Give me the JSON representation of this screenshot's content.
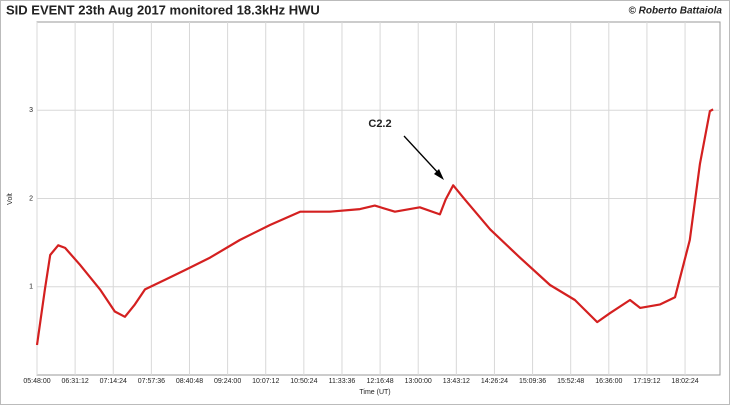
{
  "chart_data": {
    "type": "line",
    "title": "SID EVENT 23th Aug 2017  monitored 18.3kHz HWU",
    "subtitle": "© Roberto Battaiola",
    "xlabel": "Time (UT)",
    "ylabel": "Volt",
    "annotation": "C2.2",
    "x": [
      5.8,
      5.95,
      6.05,
      6.2,
      6.33,
      6.61,
      6.99,
      7.27,
      7.46,
      7.65,
      7.84,
      8.22,
      8.6,
      9.07,
      9.63,
      10.2,
      10.77,
      11.33,
      11.9,
      12.18,
      12.56,
      13.03,
      13.41,
      13.52,
      13.66,
      13.88,
      14.36,
      14.92,
      15.49,
      15.96,
      16.38,
      16.62,
      17.0,
      17.19,
      17.57,
      17.85,
      18.13,
      18.32,
      18.51,
      18.57
    ],
    "series": [
      {
        "name": "18.3kHz HWU",
        "color": "#d42020",
        "values": [
          0.34,
          0.97,
          1.36,
          1.47,
          1.44,
          1.25,
          0.97,
          0.72,
          0.66,
          0.8,
          0.97,
          1.08,
          1.19,
          1.33,
          1.53,
          1.7,
          1.85,
          1.85,
          1.88,
          1.92,
          1.85,
          1.9,
          1.82,
          1.99,
          2.15,
          1.99,
          1.65,
          1.33,
          1.02,
          0.85,
          0.6,
          0.7,
          0.85,
          0.76,
          0.8,
          0.88,
          1.53,
          2.39,
          2.99,
          3.01
        ]
      }
    ],
    "xlim": [
      5.8,
      18.7
    ],
    "xticks": [
      {
        "value": 5.8,
        "label": "05:48:00"
      },
      {
        "value": 6.52,
        "label": "06:31:12"
      },
      {
        "value": 7.24,
        "label": "07:14:24"
      },
      {
        "value": 7.96,
        "label": "07:57:36"
      },
      {
        "value": 8.68,
        "label": "08:40:48"
      },
      {
        "value": 9.4,
        "label": "09:24:00"
      },
      {
        "value": 10.12,
        "label": "10:07:12"
      },
      {
        "value": 10.84,
        "label": "10:50:24"
      },
      {
        "value": 11.56,
        "label": "11:33:36"
      },
      {
        "value": 12.28,
        "label": "12:16:48"
      },
      {
        "value": 13.0,
        "label": "13:00:00"
      },
      {
        "value": 13.72,
        "label": "13:43:12"
      },
      {
        "value": 14.44,
        "label": "14:26:24"
      },
      {
        "value": 15.16,
        "label": "15:09:36"
      },
      {
        "value": 15.88,
        "label": "15:52:48"
      },
      {
        "value": 16.6,
        "label": "16:36:00"
      },
      {
        "value": 17.32,
        "label": "17:19:12"
      },
      {
        "value": 18.04,
        "label": "18:02:24"
      }
    ],
    "ylim": [
      0,
      4
    ],
    "yticks": [
      1,
      2,
      3
    ],
    "grid": true
  }
}
